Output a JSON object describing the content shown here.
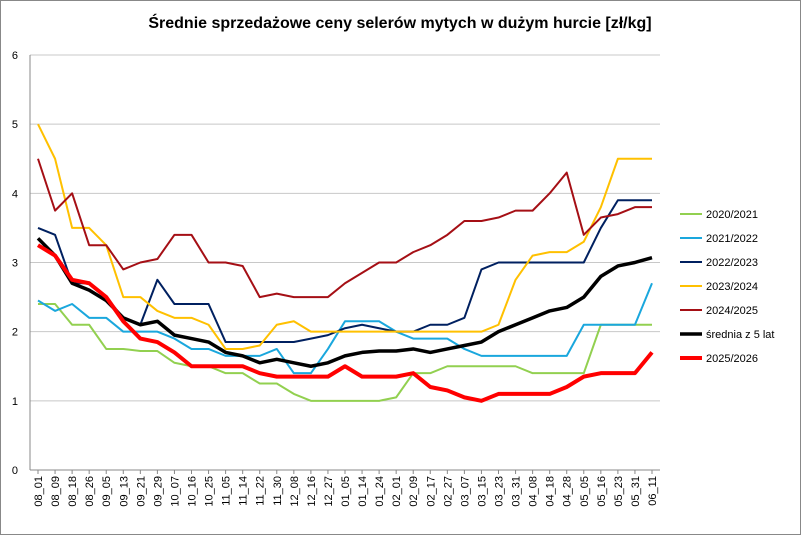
{
  "chart_data": {
    "type": "line",
    "title": "Średnie sprzedażowe ceny selerów mytych w dużym hurcie [zł/kg]",
    "categories": [
      "08_01",
      "08_09",
      "08_18",
      "08_26",
      "09_05",
      "09_13",
      "09_21",
      "09_29",
      "10_07",
      "10_16",
      "10_25",
      "11_05",
      "11_14",
      "11_22",
      "11_30",
      "12_08",
      "12_16",
      "12_27",
      "01_05",
      "01_14",
      "01_24",
      "02_01",
      "02_09",
      "02_17",
      "02_27",
      "03_07",
      "03_15",
      "03_23",
      "03_31",
      "04_08",
      "04_18",
      "04_28",
      "05_05",
      "05_16",
      "05_23",
      "05_31",
      "06_11"
    ],
    "ylim": [
      0,
      6
    ],
    "yticks": [
      0,
      1,
      2,
      3,
      4,
      5,
      6
    ],
    "grid": true,
    "legend": "right",
    "series": [
      {
        "name": "2020/2021",
        "color": "#92d050",
        "width": 2,
        "values": [
          2.4,
          2.4,
          2.1,
          2.1,
          1.75,
          1.75,
          1.72,
          1.72,
          1.55,
          1.5,
          1.5,
          1.4,
          1.4,
          1.25,
          1.25,
          1.1,
          1.0,
          1.0,
          1.0,
          1.0,
          1.0,
          1.05,
          1.4,
          1.4,
          1.5,
          1.5,
          1.5,
          1.5,
          1.5,
          1.4,
          1.4,
          1.4,
          1.4,
          2.1,
          2.1,
          2.1,
          2.1
        ]
      },
      {
        "name": "2021/2022",
        "color": "#1aa7dd",
        "width": 2,
        "values": [
          2.45,
          2.3,
          2.4,
          2.2,
          2.2,
          2.0,
          2.0,
          2.0,
          1.9,
          1.75,
          1.75,
          1.65,
          1.65,
          1.65,
          1.75,
          1.4,
          1.4,
          1.75,
          2.15,
          2.15,
          2.15,
          2.0,
          1.9,
          1.9,
          1.9,
          1.75,
          1.65,
          1.65,
          1.65,
          1.65,
          1.65,
          1.65,
          2.1,
          2.1,
          2.1,
          2.1,
          2.7
        ]
      },
      {
        "name": "2022/2023",
        "color": "#002060",
        "width": 2,
        "values": [
          3.5,
          3.4,
          2.7,
          2.7,
          2.5,
          2.2,
          2.1,
          2.75,
          2.4,
          2.4,
          2.4,
          1.85,
          1.85,
          1.85,
          1.85,
          1.85,
          1.9,
          1.95,
          2.05,
          2.1,
          2.05,
          2.0,
          2.0,
          2.1,
          2.1,
          2.2,
          2.9,
          3.0,
          3.0,
          3.0,
          3.0,
          3.0,
          3.0,
          3.5,
          3.9,
          3.9,
          3.9
        ]
      },
      {
        "name": "2023/2024",
        "color": "#ffc000",
        "width": 2,
        "values": [
          5.0,
          4.5,
          3.5,
          3.5,
          3.25,
          2.5,
          2.5,
          2.3,
          2.2,
          2.2,
          2.1,
          1.75,
          1.75,
          1.8,
          2.1,
          2.15,
          2.0,
          2.0,
          2.0,
          2.0,
          2.0,
          2.0,
          2.0,
          2.0,
          2.0,
          2.0,
          2.0,
          2.1,
          2.75,
          3.1,
          3.15,
          3.15,
          3.3,
          3.8,
          4.5,
          4.5,
          4.5
        ]
      },
      {
        "name": "2024/2025",
        "color": "#a50f15",
        "width": 2,
        "values": [
          4.5,
          3.75,
          4.0,
          3.25,
          3.25,
          2.9,
          3.0,
          3.05,
          3.4,
          3.4,
          3.0,
          3.0,
          2.95,
          2.5,
          2.55,
          2.5,
          2.5,
          2.5,
          2.7,
          2.85,
          3.0,
          3.0,
          3.15,
          3.25,
          3.4,
          3.6,
          3.6,
          3.65,
          3.75,
          3.75,
          4.0,
          4.3,
          3.4,
          3.65,
          3.7,
          3.8,
          3.8
        ]
      },
      {
        "name": "średnia z 5 lat",
        "color": "#000000",
        "width": 3.5,
        "values": [
          3.35,
          3.1,
          2.7,
          2.6,
          2.45,
          2.2,
          2.1,
          2.15,
          1.95,
          1.9,
          1.85,
          1.7,
          1.65,
          1.55,
          1.6,
          1.55,
          1.5,
          1.55,
          1.65,
          1.7,
          1.72,
          1.72,
          1.75,
          1.7,
          1.75,
          1.8,
          1.85,
          2.0,
          2.1,
          2.2,
          2.3,
          2.35,
          2.5,
          2.8,
          2.95,
          3.0,
          3.07
        ]
      },
      {
        "name": "2025/2026",
        "color": "#ff0000",
        "width": 4,
        "values": [
          3.25,
          3.1,
          2.75,
          2.7,
          2.5,
          2.15,
          1.9,
          1.85,
          1.7,
          1.5,
          1.5,
          1.5,
          1.5,
          1.4,
          1.35,
          1.35,
          1.35,
          1.35,
          1.5,
          1.35,
          1.35,
          1.35,
          1.4,
          1.2,
          1.15,
          1.05,
          1.0,
          1.1,
          1.1,
          1.1,
          1.1,
          1.2,
          1.35,
          1.4,
          1.4,
          1.4,
          1.7
        ]
      }
    ]
  }
}
